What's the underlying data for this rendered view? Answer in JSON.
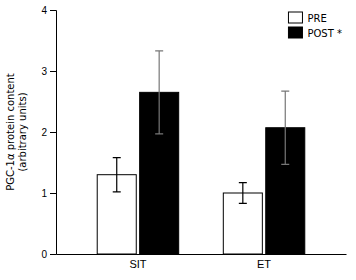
{
  "chart_data": {
    "type": "bar",
    "categories": [
      "SIT",
      "ET"
    ],
    "series": [
      {
        "name": "PRE",
        "color": "#ffffff",
        "values": [
          1.3,
          1.0
        ],
        "errors": [
          0.28,
          0.17
        ]
      },
      {
        "name": "POST *",
        "color": "#000000",
        "values": [
          2.65,
          2.07
        ],
        "errors": [
          0.68,
          0.6
        ]
      }
    ],
    "ylabel": "PGC-1α protein content\n(arbitrary units)",
    "ylim": [
      0,
      4
    ],
    "yticks": [
      0,
      1,
      2,
      3,
      4
    ],
    "grid": false,
    "legend": "upper right"
  }
}
